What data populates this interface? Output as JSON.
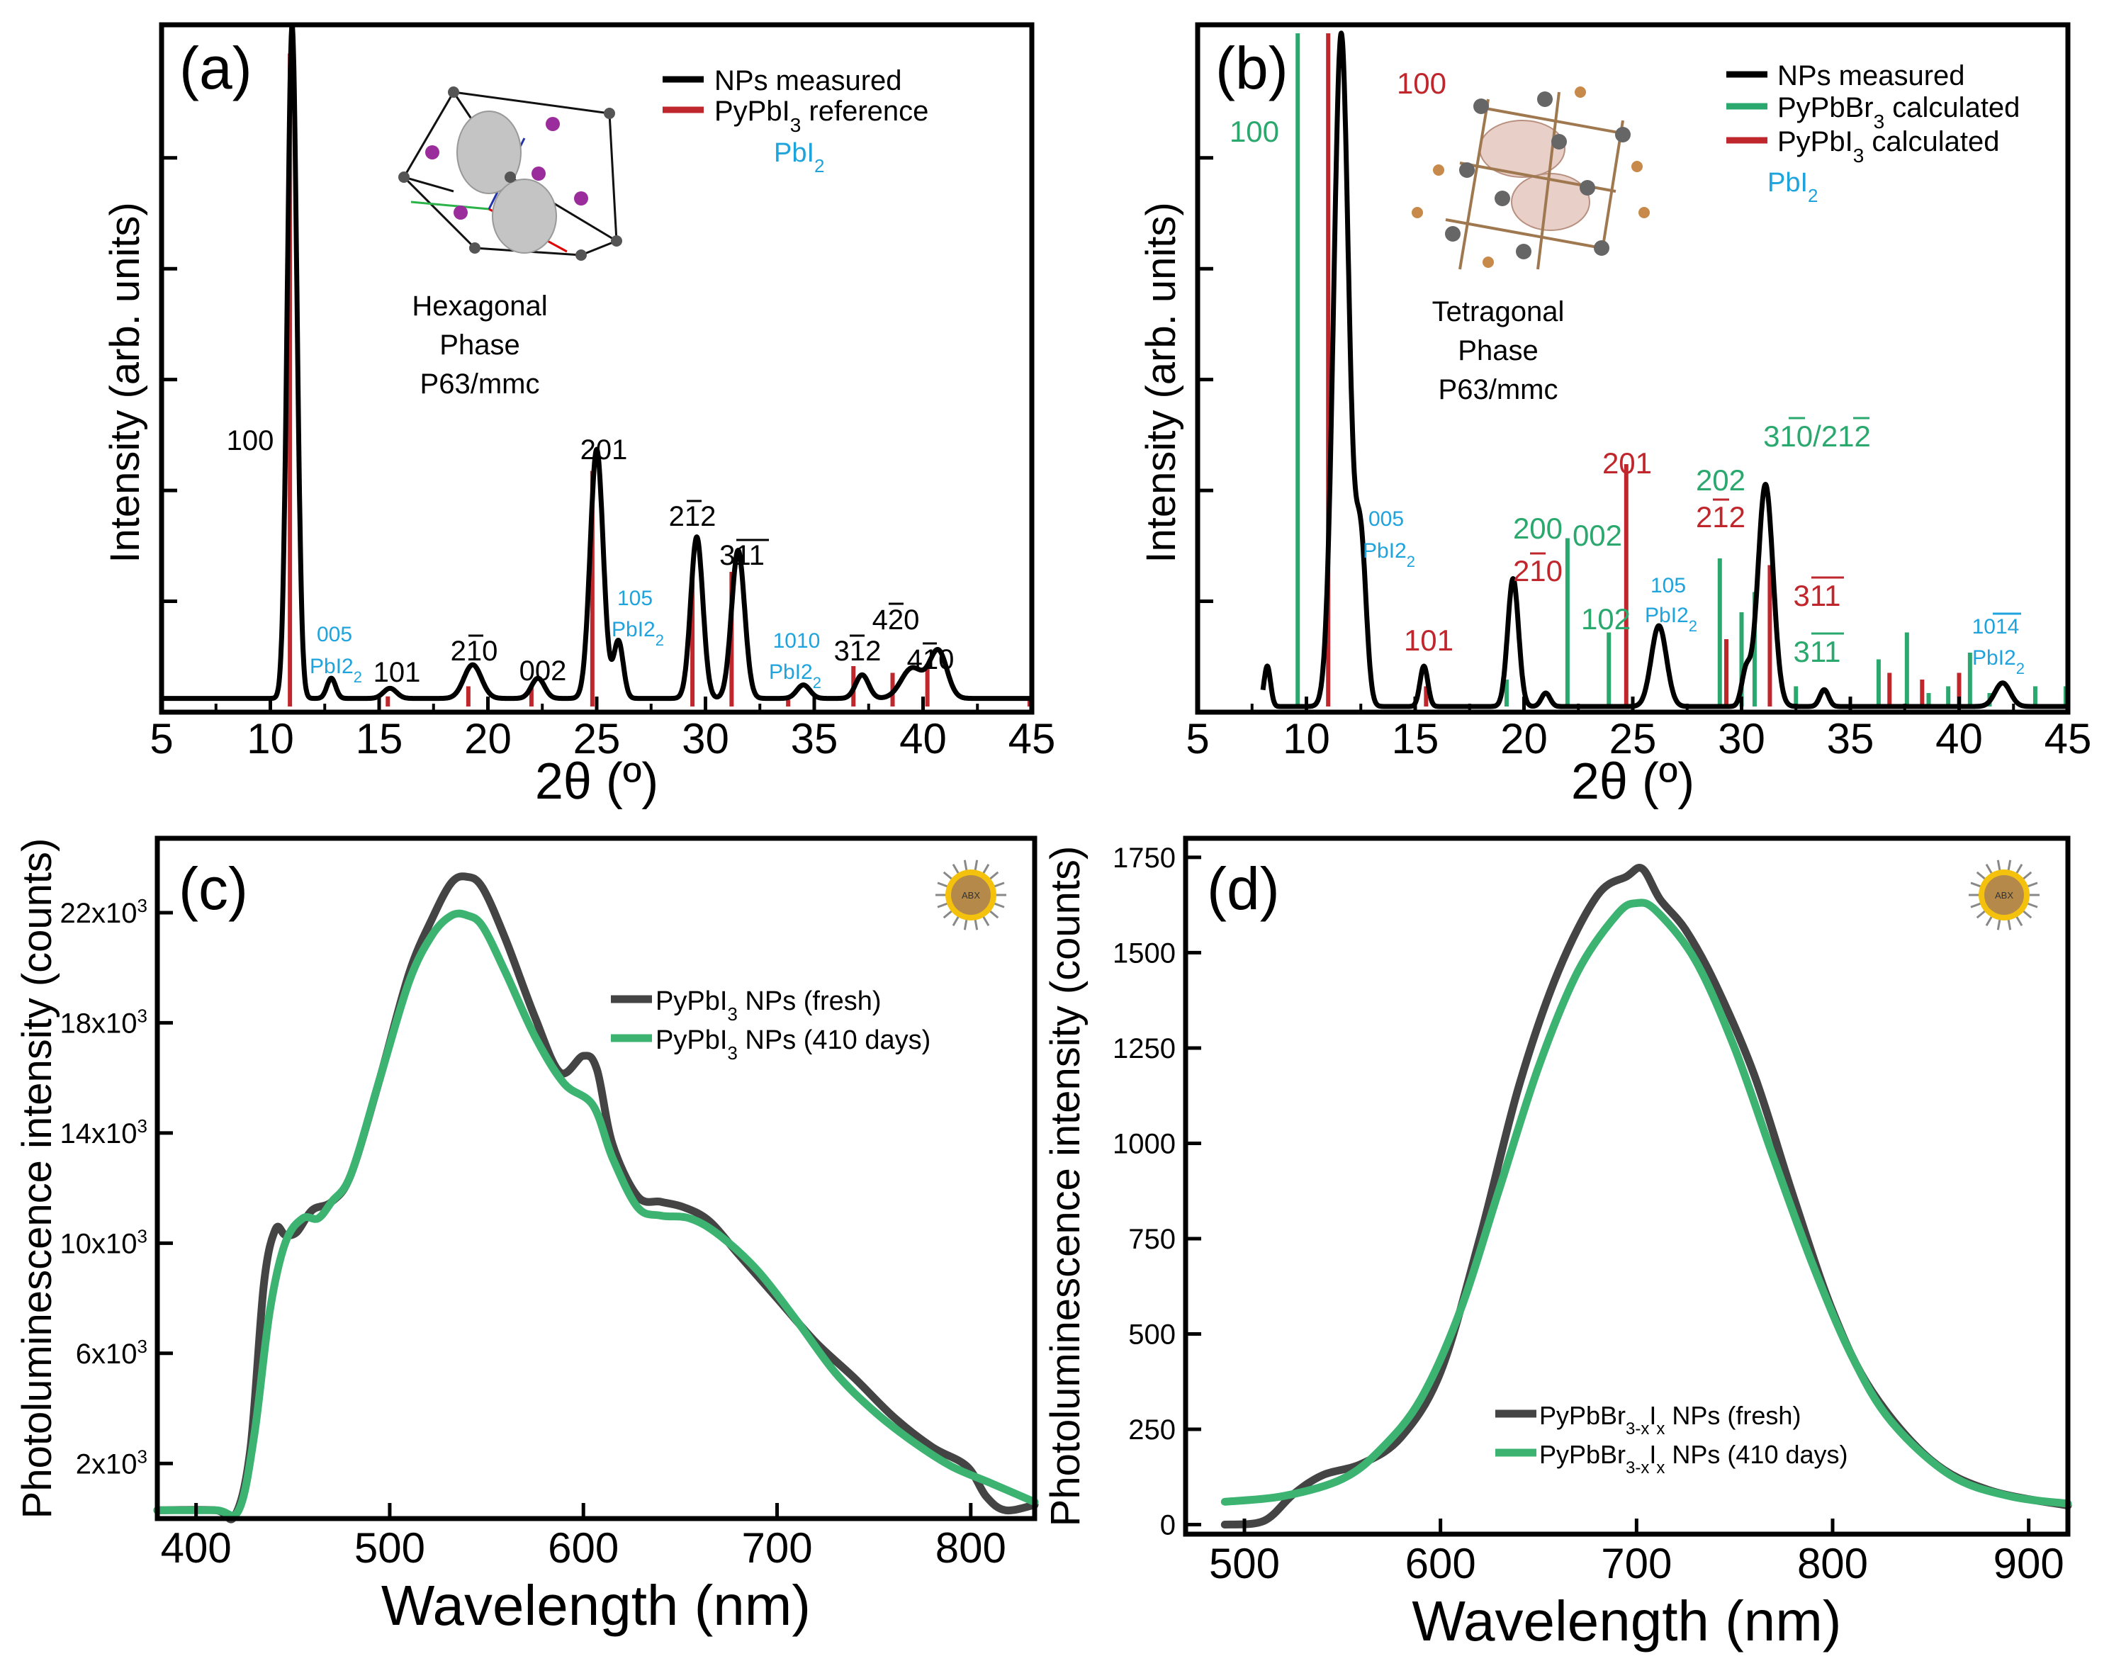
{
  "colors": {
    "measured": "#000000",
    "red": "#c0272d",
    "green": "#2aa86e",
    "blue": "#1fa3dd",
    "fresh": "#444444",
    "aged": "#3cb371"
  },
  "chart_data": [
    {
      "panel": "(a)",
      "type": "line",
      "title": "",
      "xlabel": "2θ (º)",
      "ylabel": "Intensity (arb. units)",
      "xlim": [
        5,
        45
      ],
      "ylim": [
        0,
        1
      ],
      "xticks": [
        "5",
        "10",
        "15",
        "20",
        "25",
        "30",
        "35",
        "40",
        "45"
      ],
      "legend": [
        "NPs measured",
        "PyPbI3 reference",
        "PbI2"
      ],
      "annotations": {
        "structure": [
          "Hexagonal",
          "Phase",
          "P63/mmc"
        ],
        "peaks": [
          "100",
          "005",
          "PbI2",
          "101",
          "210",
          "002",
          "201",
          "105",
          "PbI2",
          "212",
          "311",
          "1010",
          "PbI2",
          "312",
          "420",
          "410"
        ]
      },
      "series": [
        {
          "name": "NPs measured",
          "peaks": [
            [
              11.0,
              1.0,
              0.22
            ],
            [
              12.8,
              0.03,
              0.2
            ],
            [
              15.5,
              0.015,
              0.3
            ],
            [
              19.3,
              0.05,
              0.4
            ],
            [
              22.3,
              0.03,
              0.3
            ],
            [
              25.0,
              0.37,
              0.3
            ],
            [
              26.0,
              0.085,
              0.22
            ],
            [
              29.6,
              0.24,
              0.28
            ],
            [
              31.5,
              0.22,
              0.3
            ],
            [
              34.5,
              0.02,
              0.3
            ],
            [
              37.2,
              0.035,
              0.3
            ],
            [
              39.5,
              0.045,
              0.5
            ],
            [
              40.7,
              0.07,
              0.4
            ]
          ],
          "baseline": 0.012
        },
        {
          "name": "PyPbI3 reference",
          "sticks": [
            [
              10.9,
              0.97
            ],
            [
              15.4,
              0.015
            ],
            [
              19.1,
              0.03
            ],
            [
              22.0,
              0.03
            ],
            [
              24.8,
              0.35
            ],
            [
              29.4,
              0.2
            ],
            [
              31.2,
              0.2
            ],
            [
              33.8,
              0.01
            ],
            [
              36.8,
              0.06
            ],
            [
              38.6,
              0.05
            ],
            [
              40.2,
              0.06
            ],
            [
              44.9,
              0.015
            ]
          ]
        }
      ]
    },
    {
      "panel": "(b)",
      "type": "line",
      "title": "",
      "xlabel": "2θ (º)",
      "ylabel": "Intensity (arb. units)",
      "xlim": [
        5,
        45
      ],
      "ylim": [
        0,
        1
      ],
      "xticks": [
        "5",
        "10",
        "15",
        "20",
        "25",
        "30",
        "35",
        "40",
        "45"
      ],
      "legend": [
        "NPs measured",
        "PyPbBr3 calculated",
        "PyPbI3 calculated",
        "PbI2"
      ],
      "annotations": {
        "structure": [
          "Tetragonal",
          "Phase",
          "P63/mmc"
        ],
        "peaks_green": [
          "100",
          "200",
          "002",
          "102",
          "202",
          "310/212",
          "311"
        ],
        "peaks_red": [
          "100",
          "101",
          "210",
          "201",
          "212",
          "311"
        ],
        "peaks_blue": [
          "005",
          "PbI2",
          "105",
          "PbI2",
          "1014",
          "PbI2"
        ]
      },
      "series": [
        {
          "name": "NPs measured",
          "peaks": [
            [
              8.2,
              0.06,
              0.15
            ],
            [
              11.6,
              1.0,
              0.35
            ],
            [
              12.5,
              0.24,
              0.25
            ],
            [
              15.4,
              0.06,
              0.18
            ],
            [
              19.5,
              0.19,
              0.25
            ],
            [
              21.0,
              0.02,
              0.2
            ],
            [
              26.2,
              0.12,
              0.35
            ],
            [
              30.2,
              0.05,
              0.2
            ],
            [
              31.1,
              0.33,
              0.35
            ],
            [
              33.8,
              0.025,
              0.2
            ],
            [
              42.0,
              0.035,
              0.35
            ]
          ],
          "baseline": 0.0
        },
        {
          "name": "PyPbBr3 calculated",
          "sticks": [
            [
              9.6,
              1.0
            ],
            [
              19.2,
              0.04
            ],
            [
              22.0,
              0.25
            ],
            [
              23.9,
              0.11
            ],
            [
              29.0,
              0.22
            ],
            [
              30.0,
              0.14
            ],
            [
              30.6,
              0.17
            ],
            [
              32.5,
              0.03
            ],
            [
              36.3,
              0.07
            ],
            [
              37.6,
              0.11
            ],
            [
              38.6,
              0.02
            ],
            [
              39.5,
              0.03
            ],
            [
              40.5,
              0.08
            ],
            [
              41.4,
              0.02
            ],
            [
              43.5,
              0.03
            ],
            [
              44.9,
              0.03
            ]
          ]
        },
        {
          "name": "PyPbI3 calculated",
          "sticks": [
            [
              11.0,
              1.0
            ],
            [
              15.5,
              0.03
            ],
            [
              24.7,
              0.36
            ],
            [
              29.3,
              0.1
            ],
            [
              31.3,
              0.21
            ],
            [
              36.8,
              0.05
            ],
            [
              38.3,
              0.04
            ],
            [
              40.0,
              0.05
            ]
          ]
        }
      ]
    },
    {
      "panel": "(c)",
      "type": "line",
      "xlabel": "Wavelength (nm)",
      "ylabel": "Photoluminescence intensity (counts)",
      "xlim": [
        380,
        833
      ],
      "ylim": [
        0,
        24700
      ],
      "xticks": [
        "400",
        "500",
        "600",
        "700",
        "800"
      ],
      "yticks": [
        "2x10",
        "6x10",
        "10x10",
        "14x10",
        "18x10",
        "22x10"
      ],
      "ytick_exponent": "3",
      "legend": [
        "PyPbI3 NPs (fresh)",
        "PyPbI3 NPs  (410 days)"
      ],
      "series": [
        {
          "name": "PyPbI3 NPs (fresh)",
          "x": [
            380,
            410,
            420,
            428,
            435,
            441,
            446,
            452,
            460,
            470,
            480,
            495,
            510,
            522,
            532,
            540,
            548,
            560,
            575,
            588,
            600,
            607,
            615,
            628,
            640,
            652,
            665,
            680,
            700,
            720,
            740,
            760,
            780,
            798,
            808,
            818,
            833
          ],
          "y": [
            300,
            300,
            100,
            2500,
            8500,
            10500,
            10300,
            10400,
            11200,
            11500,
            12500,
            16000,
            19800,
            21800,
            23100,
            23300,
            22900,
            21000,
            18200,
            16200,
            16800,
            16300,
            13600,
            11700,
            11500,
            11300,
            10800,
            9600,
            8000,
            6400,
            5100,
            3700,
            2600,
            1900,
            800,
            300,
            500
          ]
        },
        {
          "name": "PyPbI3 NPs  (410 days)",
          "x": [
            380,
            410,
            422,
            430,
            438,
            446,
            455,
            463,
            470,
            480,
            495,
            510,
            522,
            532,
            540,
            548,
            560,
            575,
            590,
            605,
            615,
            628,
            640,
            655,
            670,
            690,
            710,
            730,
            750,
            770,
            790,
            810,
            833
          ],
          "y": [
            300,
            300,
            300,
            3000,
            7500,
            10000,
            10900,
            10900,
            11500,
            12500,
            16000,
            19500,
            21200,
            21900,
            21900,
            21500,
            19800,
            17500,
            15800,
            15000,
            13100,
            11300,
            11000,
            10900,
            10300,
            9000,
            7200,
            5300,
            3900,
            2800,
            1900,
            1300,
            600
          ]
        }
      ]
    },
    {
      "panel": "(d)",
      "type": "line",
      "xlabel": "Wavelength (nm)",
      "ylabel": "Photoluminescence intensity (counts)",
      "xlim": [
        470,
        920
      ],
      "ylim": [
        -25,
        1800
      ],
      "xticks": [
        "500",
        "600",
        "700",
        "800",
        "900"
      ],
      "yticks": [
        "0",
        "250",
        "500",
        "750",
        "1000",
        "1250",
        "1500",
        "1750"
      ],
      "legend": [
        "PyPbBr3-xIx NPs (fresh)",
        "PyPbBr3-xIx NPs  (410 days)"
      ],
      "series": [
        {
          "name": "PyPbBr3-xIx NPs (fresh)",
          "x": [
            490,
            510,
            525,
            540,
            560,
            580,
            600,
            620,
            640,
            660,
            680,
            695,
            703,
            712,
            725,
            740,
            760,
            780,
            800,
            820,
            850,
            880,
            920
          ],
          "y": [
            0,
            10,
            80,
            130,
            160,
            230,
            400,
            750,
            1150,
            1450,
            1650,
            1700,
            1720,
            1640,
            1560,
            1420,
            1180,
            860,
            560,
            350,
            170,
            90,
            50
          ]
        },
        {
          "name": "PyPbBr3-xIx NPs  (410 days)",
          "x": [
            490,
            520,
            550,
            570,
            590,
            610,
            630,
            650,
            670,
            690,
            700,
            710,
            730,
            750,
            770,
            790,
            810,
            830,
            860,
            890,
            920
          ],
          "y": [
            60,
            75,
            120,
            200,
            330,
            560,
            880,
            1200,
            1450,
            1600,
            1630,
            1610,
            1480,
            1250,
            960,
            680,
            440,
            270,
            130,
            75,
            55
          ]
        }
      ]
    }
  ]
}
